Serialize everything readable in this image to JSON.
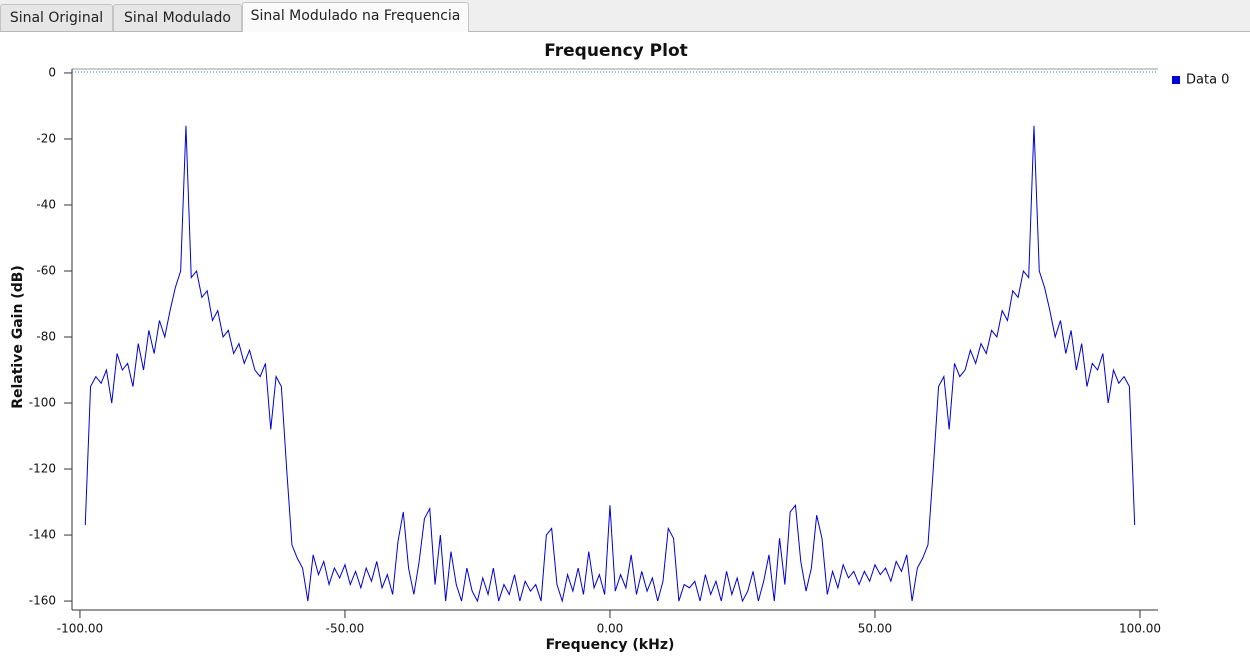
{
  "tabs": [
    "Sinal Original",
    "Sinal Modulado",
    "Sinal Modulado na Frequencia"
  ],
  "active_tab": 2,
  "chart_data": {
    "type": "line",
    "title": "Frequency Plot",
    "x_label": "Frequency (kHz)",
    "y_label": "Relative Gain (dB)",
    "xlim": [
      -101.5,
      103.4
    ],
    "ylim": [
      -161.5,
      1.2
    ],
    "xticks": [
      {
        "value": -100,
        "label": "-100.00"
      },
      {
        "value": -50,
        "label": "-50.00"
      },
      {
        "value": 0,
        "label": "0.00"
      },
      {
        "value": 50,
        "label": "50.00"
      },
      {
        "value": 100,
        "label": "100.00"
      }
    ],
    "yticks": [
      0,
      -20,
      -40,
      -60,
      -80,
      -100,
      -120,
      -140,
      -160
    ],
    "legend": "right",
    "x": [
      -99,
      -98,
      -97,
      -96,
      -95,
      -94,
      -93,
      -92,
      -91,
      -90,
      -89,
      -88,
      -87,
      -86,
      -85,
      -84,
      -83,
      -82,
      -81,
      -80,
      -79,
      -78,
      -77,
      -76,
      -75,
      -74,
      -73,
      -72,
      -71,
      -70,
      -69,
      -68,
      -67,
      -66,
      -65,
      -64,
      -63,
      -62,
      -61,
      -60,
      -59,
      -58,
      -57,
      -56,
      -55,
      -54,
      -53,
      -52,
      -51,
      -50,
      -49,
      -48,
      -47,
      -46,
      -45,
      -44,
      -43,
      -42,
      -41,
      -40,
      -39,
      -38,
      -37,
      -36,
      -35,
      -34,
      -33,
      -32,
      -31,
      -30,
      -29,
      -28,
      -27,
      -26,
      -25,
      -24,
      -23,
      -22,
      -21,
      -20,
      -19,
      -18,
      -17,
      -16,
      -15,
      -14,
      -13,
      -12,
      -11,
      -10,
      -9,
      -8,
      -7,
      -6,
      -5,
      -4,
      -3,
      -2,
      -1,
      0,
      1,
      2,
      3,
      4,
      5,
      6,
      7,
      8,
      9,
      10,
      11,
      12,
      13,
      14,
      15,
      16,
      17,
      18,
      19,
      20,
      21,
      22,
      23,
      24,
      25,
      26,
      27,
      28,
      29,
      30,
      31,
      32,
      33,
      34,
      35,
      36,
      37,
      38,
      39,
      40,
      41,
      42,
      43,
      44,
      45,
      46,
      47,
      48,
      49,
      50,
      51,
      52,
      53,
      54,
      55,
      56,
      57,
      58,
      59,
      60,
      61,
      62,
      63,
      64,
      65,
      66,
      67,
      68,
      69,
      70,
      71,
      72,
      73,
      74,
      75,
      76,
      77,
      78,
      79,
      80,
      81,
      82,
      83,
      84,
      85,
      86,
      87,
      88,
      89,
      90,
      91,
      92,
      93,
      94,
      95,
      96,
      97,
      98,
      99
    ],
    "series": [
      {
        "name": "Data 0",
        "color": "#0000d8",
        "values": [
          -137,
          -95,
          -92,
          -94,
          -90,
          -100,
          -85,
          -90,
          -88,
          -95,
          -82,
          -90,
          -78,
          -85,
          -75,
          -80,
          -72,
          -65,
          -60,
          -16,
          -62,
          -60,
          -68,
          -66,
          -75,
          -72,
          -80,
          -78,
          -85,
          -82,
          -88,
          -84,
          -90,
          -92,
          -88,
          -108,
          -92,
          -95,
          -120,
          -143,
          -147,
          -150,
          -160,
          -146,
          -152,
          -148,
          -155,
          -150,
          -153,
          -149,
          -155,
          -151,
          -156,
          -150,
          -154,
          -148,
          -156,
          -152,
          -158,
          -142,
          -133,
          -150,
          -158,
          -148,
          -135,
          -132,
          -155,
          -140,
          -160,
          -145,
          -155,
          -160,
          -150,
          -157,
          -160,
          -153,
          -158,
          -150,
          -160,
          -155,
          -158,
          -152,
          -160,
          -154,
          -157,
          -155,
          -160,
          -140,
          -138,
          -155,
          -160,
          -152,
          -157,
          -150,
          -158,
          -145,
          -156,
          -152,
          -158,
          -131,
          -157,
          -152,
          -156,
          -146,
          -158,
          -151,
          -157,
          -153,
          -160,
          -154,
          -138,
          -141,
          -160,
          -155,
          -156,
          -154,
          -160,
          -152,
          -158,
          -154,
          -160,
          -151,
          -158,
          -153,
          -160,
          -157,
          -151,
          -160,
          -154,
          -146,
          -160,
          -141,
          -155,
          -133,
          -131,
          -148,
          -157,
          -150,
          -134,
          -141,
          -158,
          -151,
          -156,
          -149,
          -153,
          -151,
          -155,
          -151,
          -154,
          -149,
          -152,
          -150,
          -154,
          -148,
          -151,
          -146,
          -160,
          -150,
          -147,
          -143,
          -120,
          -95,
          -92,
          -108,
          -88,
          -92,
          -90,
          -84,
          -88,
          -82,
          -85,
          -78,
          -80,
          -72,
          -75,
          -66,
          -68,
          -60,
          -62,
          -16,
          -60,
          -65,
          -72,
          -80,
          -75,
          -85,
          -78,
          -90,
          -82,
          -95,
          -88,
          -90,
          -85,
          -100,
          -90,
          -94,
          -92,
          -95,
          -137
        ]
      }
    ]
  }
}
